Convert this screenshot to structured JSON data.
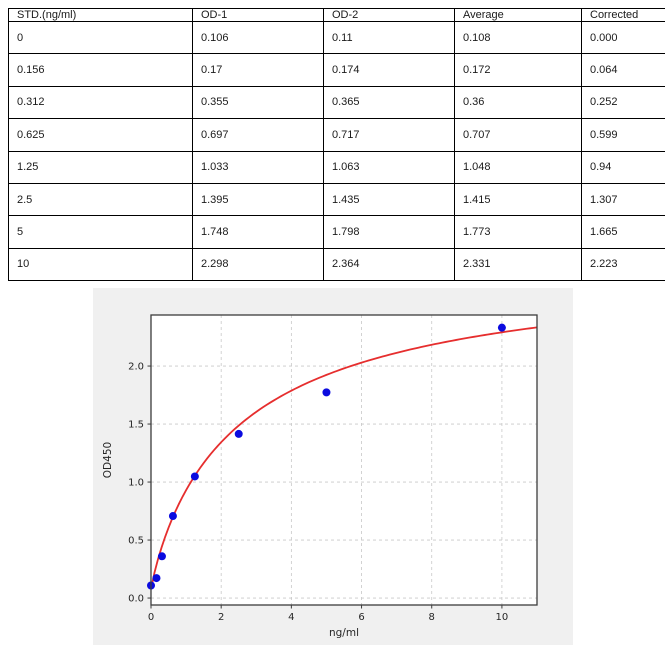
{
  "table": {
    "columns": [
      "STD.(ng/ml)",
      "OD-1",
      "OD-2",
      "Average",
      "Corrected"
    ],
    "rows": [
      [
        "0",
        "0.106",
        "0.11",
        "0.108",
        "0.000"
      ],
      [
        "0.156",
        "0.17",
        "0.174",
        "0.172",
        "0.064"
      ],
      [
        "0.312",
        "0.355",
        "0.365",
        "0.36",
        "0.252"
      ],
      [
        "0.625",
        "0.697",
        "0.717",
        "0.707",
        "0.599"
      ],
      [
        "1.25",
        "1.033",
        "1.063",
        "1.048",
        "0.94"
      ],
      [
        "2.5",
        "1.395",
        "1.435",
        "1.415",
        "1.307"
      ],
      [
        "5",
        "1.748",
        "1.798",
        "1.773",
        "1.665"
      ],
      [
        "10",
        "2.298",
        "2.364",
        "2.331",
        "2.223"
      ]
    ]
  },
  "chart_data": {
    "type": "scatter",
    "title": "",
    "xlabel": "ng/ml",
    "ylabel": "OD450",
    "xlim": [
      0,
      11.0
    ],
    "ylim": [
      -0.06,
      2.44
    ],
    "x_ticks": [
      0,
      2,
      4,
      6,
      8,
      10
    ],
    "y_ticks": [
      0.0,
      0.5,
      1.0,
      1.5,
      2.0
    ],
    "grid": true,
    "legend_position": "none",
    "points": {
      "x": [
        0,
        0.156,
        0.312,
        0.625,
        1.25,
        2.5,
        5,
        10
      ],
      "y": [
        0.108,
        0.172,
        0.36,
        0.707,
        1.048,
        1.415,
        1.773,
        2.331
      ]
    },
    "fit_curve": {
      "description": "saturating binding fit y = a + (d-a)*x^b/(c^b+x^b)",
      "a": 0.075,
      "d": 2.95,
      "b": 0.9,
      "c": 2.6
    },
    "colors": {
      "point": "#0b0bdf",
      "curve": "#e62e2e",
      "figure_bg": "#f0f0f0",
      "plot_bg": "#ffffff",
      "grid": "#c8c8c8",
      "spine": "#3c3c3c",
      "tick_text": "#262626"
    }
  }
}
